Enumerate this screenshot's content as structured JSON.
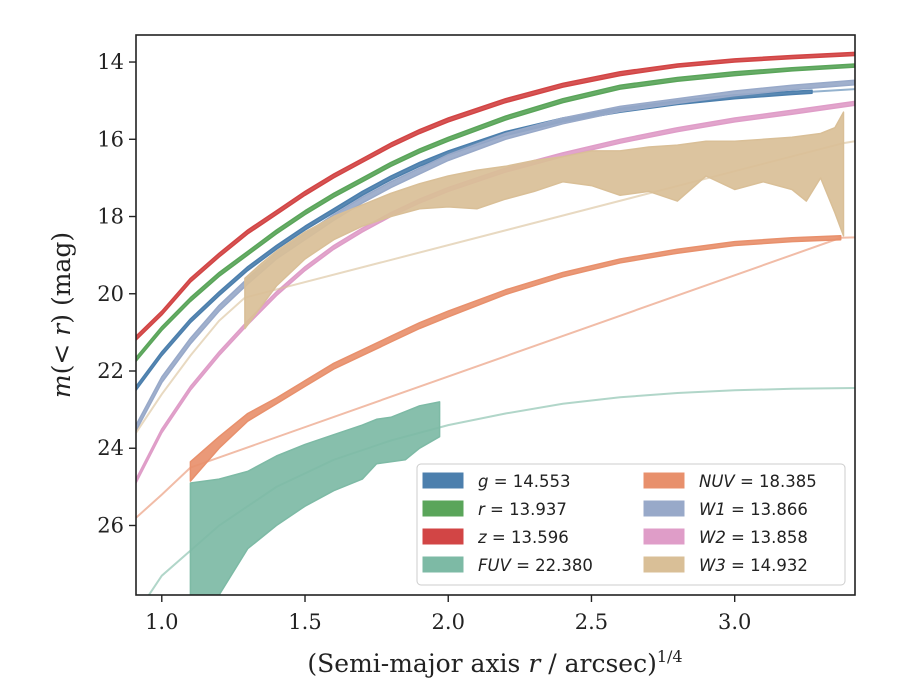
{
  "chart_data": {
    "type": "line",
    "xlabel": "(Semi-major axis r / arcsec)^1/4",
    "ylabel": "m(< r) (mag)",
    "xlim": [
      0.91,
      3.42
    ],
    "ylim": [
      27.8,
      13.3
    ],
    "y_inverted": true,
    "grid": false,
    "legend_position": "lower-right",
    "x_ticks": [
      "1.0",
      "1.5",
      "2.0",
      "2.5",
      "3.0"
    ],
    "y_ticks": [
      "14",
      "16",
      "18",
      "20",
      "22",
      "24",
      "26"
    ],
    "series": [
      {
        "name": "g = 14.553",
        "legend_var": "g",
        "legend_value": "14.553",
        "color": "#4c7fad",
        "band_x": [
          0.91,
          1.0,
          1.1,
          1.2,
          1.3,
          1.4,
          1.5,
          1.6,
          1.7,
          1.8,
          1.9,
          2.0,
          2.2,
          2.4,
          2.6,
          2.8,
          3.0,
          3.2,
          3.27
        ],
        "band_upper": [
          22.4,
          21.5,
          20.65,
          19.95,
          19.3,
          18.75,
          18.25,
          17.8,
          17.35,
          16.95,
          16.6,
          16.3,
          15.8,
          15.45,
          15.2,
          15.0,
          14.85,
          14.76,
          14.73
        ],
        "band_lower": [
          22.5,
          21.6,
          20.75,
          20.05,
          19.4,
          18.85,
          18.35,
          17.9,
          17.45,
          17.05,
          16.7,
          16.4,
          15.9,
          15.55,
          15.3,
          15.1,
          14.95,
          14.84,
          14.81
        ],
        "curve_x": [
          3.27,
          3.42
        ],
        "curve_y": [
          14.77,
          14.7
        ]
      },
      {
        "name": "r = 13.937",
        "legend_var": "r",
        "legend_value": "13.937",
        "color": "#5aa55a",
        "band_x": [
          0.91,
          1.0,
          1.1,
          1.2,
          1.3,
          1.4,
          1.5,
          1.6,
          1.7,
          1.8,
          1.9,
          2.0,
          2.2,
          2.4,
          2.6,
          2.8,
          3.0,
          3.2,
          3.42
        ],
        "band_upper": [
          21.65,
          20.85,
          20.1,
          19.45,
          18.9,
          18.35,
          17.85,
          17.4,
          17.0,
          16.6,
          16.25,
          15.95,
          15.4,
          14.95,
          14.6,
          14.4,
          14.25,
          14.15,
          14.05
        ],
        "band_lower": [
          21.75,
          20.95,
          20.2,
          19.55,
          19.0,
          18.45,
          17.95,
          17.5,
          17.1,
          16.7,
          16.35,
          16.05,
          15.5,
          15.05,
          14.7,
          14.5,
          14.35,
          14.23,
          14.13
        ]
      },
      {
        "name": "z = 13.596",
        "legend_var": "z",
        "legend_value": "13.596",
        "color": "#d24545",
        "band_x": [
          0.91,
          1.0,
          1.1,
          1.2,
          1.3,
          1.4,
          1.5,
          1.6,
          1.7,
          1.8,
          1.9,
          2.0,
          2.2,
          2.4,
          2.6,
          2.8,
          3.0,
          3.2,
          3.42
        ],
        "band_upper": [
          21.1,
          20.45,
          19.6,
          18.95,
          18.35,
          17.85,
          17.35,
          16.9,
          16.5,
          16.1,
          15.75,
          15.45,
          14.95,
          14.55,
          14.25,
          14.05,
          13.92,
          13.83,
          13.75
        ],
        "band_lower": [
          21.2,
          20.55,
          19.7,
          19.05,
          18.45,
          17.95,
          17.45,
          17.0,
          16.6,
          16.2,
          15.85,
          15.55,
          15.05,
          14.65,
          14.35,
          14.13,
          14.0,
          13.91,
          13.83
        ]
      },
      {
        "name": "FUV = 22.380",
        "legend_var": "FUV",
        "legend_value": "22.380",
        "color": "#7dbaa5",
        "band_x": [
          1.1,
          1.2,
          1.3,
          1.4,
          1.5,
          1.6,
          1.7,
          1.75,
          1.8,
          1.85,
          1.9,
          1.97
        ],
        "band_upper": [
          24.9,
          24.8,
          24.6,
          24.2,
          23.9,
          23.65,
          23.4,
          23.25,
          23.2,
          23.05,
          22.9,
          22.8
        ],
        "band_lower": [
          27.8,
          27.8,
          26.6,
          26.0,
          25.5,
          25.1,
          24.8,
          24.4,
          24.35,
          24.3,
          24.0,
          23.7
        ],
        "curve_x": [
          0.91,
          1.0,
          1.2,
          1.4,
          1.6,
          1.8,
          2.0,
          2.2,
          2.4,
          2.6,
          2.8,
          3.0,
          3.2,
          3.42
        ],
        "curve_y": [
          28.3,
          27.3,
          26.0,
          25.0,
          24.3,
          23.8,
          23.4,
          23.1,
          22.85,
          22.68,
          22.57,
          22.5,
          22.46,
          22.44
        ]
      },
      {
        "name": "NUV = 18.385",
        "legend_var": "NUV",
        "legend_value": "18.385",
        "color": "#e8906c",
        "band_x": [
          1.1,
          1.2,
          1.3,
          1.4,
          1.5,
          1.6,
          1.7,
          1.8,
          1.9,
          2.0,
          2.2,
          2.4,
          2.6,
          2.8,
          3.0,
          3.2,
          3.37
        ],
        "band_upper": [
          24.35,
          23.7,
          23.1,
          22.7,
          22.25,
          21.8,
          21.45,
          21.1,
          20.75,
          20.45,
          19.9,
          19.45,
          19.1,
          18.85,
          18.65,
          18.55,
          18.5
        ],
        "band_lower": [
          24.85,
          24.0,
          23.3,
          22.85,
          22.4,
          21.95,
          21.6,
          21.25,
          20.9,
          20.6,
          20.02,
          19.56,
          19.2,
          18.95,
          18.75,
          18.65,
          18.6
        ],
        "curve_x": [
          0.91,
          1.0,
          1.1,
          3.37,
          3.42
        ],
        "curve_y": [
          25.8,
          25.2,
          24.5,
          18.55,
          18.54
        ]
      },
      {
        "name": "W1 = 13.866",
        "legend_var": "W1",
        "legend_value": "13.866",
        "color": "#98a9c9",
        "band_x": [
          0.91,
          1.0,
          1.1,
          1.2,
          1.3,
          1.4,
          1.5,
          1.6,
          1.7,
          1.8,
          1.9,
          2.0,
          2.2,
          2.4,
          2.6,
          2.8,
          3.0,
          3.2,
          3.42
        ],
        "band_upper": [
          23.4,
          22.15,
          21.15,
          20.3,
          19.6,
          18.95,
          18.45,
          17.95,
          17.5,
          17.1,
          16.75,
          16.4,
          15.85,
          15.45,
          15.15,
          14.95,
          14.75,
          14.6,
          14.47
        ],
        "band_lower": [
          23.55,
          22.3,
          21.3,
          20.45,
          19.75,
          19.1,
          18.6,
          18.1,
          17.65,
          17.25,
          16.9,
          16.55,
          16.0,
          15.6,
          15.28,
          15.07,
          14.87,
          14.72,
          14.59
        ]
      },
      {
        "name": "W2 = 13.858",
        "legend_var": "W2",
        "legend_value": "13.858",
        "color": "#df9dc8",
        "band_x": [
          0.91,
          1.0,
          1.1,
          1.2,
          1.3,
          1.4,
          1.5,
          1.6,
          1.7,
          1.8,
          1.9,
          2.0,
          2.2,
          2.4,
          2.6,
          2.8,
          3.0,
          3.2,
          3.42
        ],
        "band_upper": [
          24.8,
          23.5,
          22.4,
          21.5,
          20.7,
          19.95,
          19.3,
          18.75,
          18.3,
          17.9,
          17.55,
          17.25,
          16.75,
          16.35,
          16.0,
          15.7,
          15.45,
          15.25,
          15.02
        ],
        "band_lower": [
          24.9,
          23.6,
          22.5,
          21.6,
          20.8,
          20.05,
          19.4,
          18.85,
          18.4,
          18.0,
          17.65,
          17.35,
          16.85,
          16.45,
          16.1,
          15.8,
          15.55,
          15.35,
          15.12
        ]
      },
      {
        "name": "W3 = 14.932",
        "legend_var": "W3",
        "legend_value": "14.932",
        "color": "#d9bf97",
        "band_x": [
          1.29,
          1.35,
          1.4,
          1.5,
          1.6,
          1.7,
          1.8,
          1.9,
          2.0,
          2.1,
          2.2,
          2.3,
          2.4,
          2.5,
          2.6,
          2.7,
          2.8,
          2.9,
          3.0,
          3.1,
          3.2,
          3.25,
          3.3,
          3.35,
          3.38
        ],
        "band_upper": [
          19.6,
          19.2,
          18.9,
          18.4,
          18.0,
          17.7,
          17.4,
          17.15,
          16.95,
          16.8,
          16.7,
          16.55,
          16.45,
          16.3,
          16.3,
          16.2,
          16.15,
          16.05,
          16.05,
          16.0,
          15.95,
          15.9,
          15.85,
          15.7,
          15.3
        ],
        "band_lower": [
          20.9,
          20.3,
          19.8,
          19.1,
          18.6,
          18.25,
          18.0,
          17.8,
          17.75,
          17.8,
          17.55,
          17.35,
          17.1,
          17.2,
          17.45,
          17.35,
          17.6,
          16.95,
          17.3,
          17.1,
          17.3,
          17.6,
          17.0,
          17.9,
          18.5
        ],
        "curve_x": [
          0.91,
          1.0,
          1.1,
          1.2,
          1.29,
          3.38,
          3.42
        ],
        "curve_y": [
          23.6,
          22.6,
          21.6,
          20.7,
          20.1,
          16.1,
          16.05
        ]
      }
    ]
  }
}
